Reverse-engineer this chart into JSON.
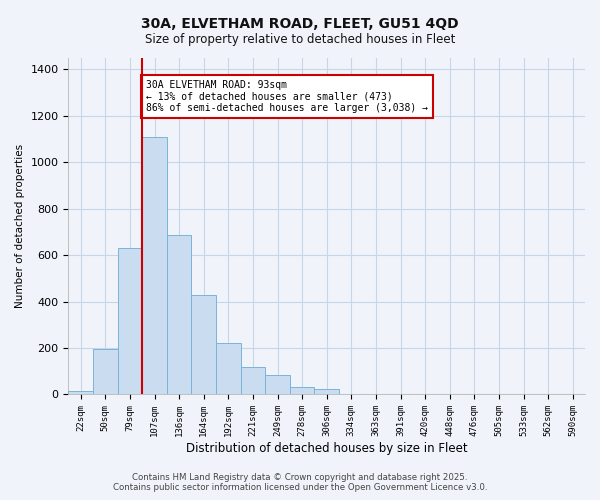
{
  "title": "30A, ELVETHAM ROAD, FLEET, GU51 4QD",
  "subtitle": "Size of property relative to detached houses in Fleet",
  "xlabel": "Distribution of detached houses by size in Fleet",
  "ylabel": "Number of detached properties",
  "bar_color": "#c9dcf0",
  "bar_edge_color": "#7ab4d8",
  "bin_labels": [
    "22sqm",
    "50sqm",
    "79sqm",
    "107sqm",
    "136sqm",
    "164sqm",
    "192sqm",
    "221sqm",
    "249sqm",
    "278sqm",
    "306sqm",
    "334sqm",
    "363sqm",
    "391sqm",
    "420sqm",
    "448sqm",
    "476sqm",
    "505sqm",
    "533sqm",
    "562sqm",
    "590sqm"
  ],
  "bar_values": [
    15,
    195,
    630,
    1110,
    685,
    430,
    223,
    120,
    82,
    33,
    25,
    0,
    0,
    0,
    0,
    0,
    0,
    0,
    0,
    0,
    0
  ],
  "ylim": [
    0,
    1450
  ],
  "yticks": [
    0,
    200,
    400,
    600,
    800,
    1000,
    1200,
    1400
  ],
  "vline_position": 2.5,
  "vline_color": "#cc0000",
  "annotation_title": "30A ELVETHAM ROAD: 93sqm",
  "annotation_line2": "← 13% of detached houses are smaller (473)",
  "annotation_line3": "86% of semi-detached houses are larger (3,038) →",
  "annotation_box_color": "#ffffff",
  "annotation_box_edge": "#cc0000",
  "footer_line1": "Contains HM Land Registry data © Crown copyright and database right 2025.",
  "footer_line2": "Contains public sector information licensed under the Open Government Licence v3.0.",
  "background_color": "#f0f4fa",
  "grid_color": "#c8d4e8"
}
